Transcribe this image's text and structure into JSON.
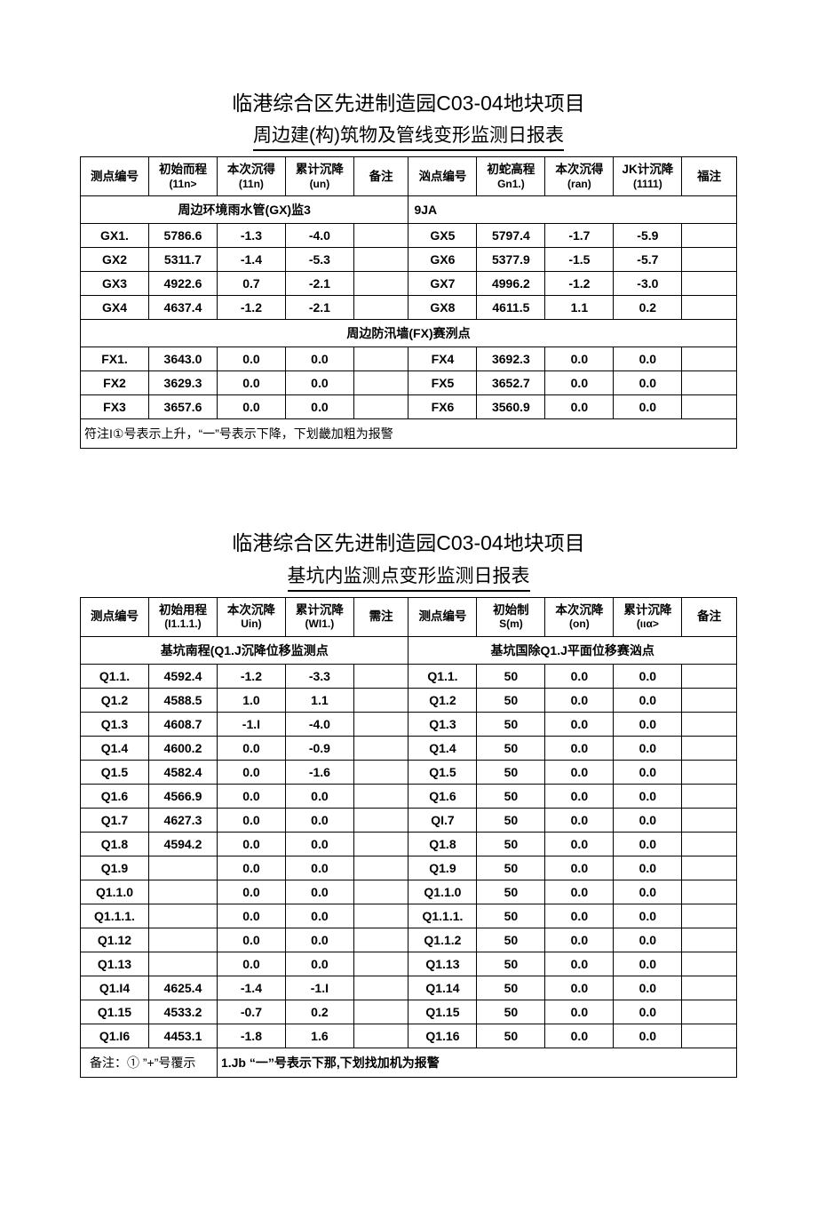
{
  "report1": {
    "title": "临港综合区先进制造园C03-04地块项目",
    "subtitle": "周边建(构)筑物及管线变形监测日报表",
    "headers": [
      {
        "main": "测点编号",
        "sub": ""
      },
      {
        "main": "初始而程",
        "sub": "(11n>"
      },
      {
        "main": "本次沉得",
        "sub": "(11n)"
      },
      {
        "main": "累计沉降",
        "sub": "(un)"
      },
      {
        "main": "备注",
        "sub": ""
      },
      {
        "main": "汹点编号",
        "sub": ""
      },
      {
        "main": "初蛇高程",
        "sub": "Gn1.)"
      },
      {
        "main": "本次沉得",
        "sub": "(ran)"
      },
      {
        "main": "JK计沉降",
        "sub": "(1111)"
      },
      {
        "main": "福注",
        "sub": ""
      }
    ],
    "section1_left": "周边环境雨水管(GX)监3",
    "section1_right": "9JA",
    "rows1": [
      [
        "GX1.",
        "5786.6",
        "-1.3",
        "-4.0",
        "",
        "GX5",
        "5797.4",
        "-1.7",
        "-5.9",
        ""
      ],
      [
        "GX2",
        "5311.7",
        "-1.4",
        "-5.3",
        "",
        "GX6",
        "5377.9",
        "-1.5",
        "-5.7",
        ""
      ],
      [
        "GX3",
        "4922.6",
        "0.7",
        "-2.1",
        "",
        "GX7",
        "4996.2",
        "-1.2",
        "-3.0",
        ""
      ],
      [
        "GX4",
        "4637.4",
        "-1.2",
        "-2.1",
        "",
        "GX8",
        "4611.5",
        "1.1",
        "0.2",
        ""
      ]
    ],
    "section2_full": "周边防汛墙(FX)赛洌点",
    "rows2": [
      [
        "FX1.",
        "3643.0",
        "0.0",
        "0.0",
        "",
        "FX4",
        "3692.3",
        "0.0",
        "0.0",
        ""
      ],
      [
        "FX2",
        "3629.3",
        "0.0",
        "0.0",
        "",
        "FX5",
        "3652.7",
        "0.0",
        "0.0",
        ""
      ],
      [
        "FX3",
        "3657.6",
        "0.0",
        "0.0",
        "",
        "FX6",
        "3560.9",
        "0.0",
        "0.0",
        ""
      ]
    ],
    "footnote": "符注I①号表示上升，“一”号表示下降，下划畿加粗为报警"
  },
  "report2": {
    "title": "临港综合区先进制造园C03-04地块项目",
    "subtitle": "基坑内监测点变形监测日报表",
    "headers": [
      {
        "main": "测点编号",
        "sub": ""
      },
      {
        "main": "初始用程",
        "sub": "(I1.1.1.)"
      },
      {
        "main": "本次沉降",
        "sub": "Uin)"
      },
      {
        "main": "累计沉降",
        "sub": "(WI1.)"
      },
      {
        "main": "需注",
        "sub": ""
      },
      {
        "main": "测点编号",
        "sub": ""
      },
      {
        "main": "初始制",
        "sub": "S(m)"
      },
      {
        "main": "本次沉降",
        "sub": "(on)"
      },
      {
        "main": "累计沉降",
        "sub": "(ιια>"
      },
      {
        "main": "备注",
        "sub": ""
      }
    ],
    "section1_left": "基坑南程(Q1.J沉降位移监测点",
    "section1_right": "基坑国除Q1.J平面位移赛汹点",
    "rows": [
      [
        "Q1.1.",
        "4592.4",
        "-1.2",
        "-3.3",
        "",
        "Q1.1.",
        "50",
        "0.0",
        "0.0",
        ""
      ],
      [
        "Q1.2",
        "4588.5",
        "1.0",
        "1.1",
        "",
        "Q1.2",
        "50",
        "0.0",
        "0.0",
        ""
      ],
      [
        "Q1.3",
        "4608.7",
        "-1.I",
        "-4.0",
        "",
        "Q1.3",
        "50",
        "0.0",
        "0.0",
        ""
      ],
      [
        "Q1.4",
        "4600.2",
        "0.0",
        "-0.9",
        "",
        "Q1.4",
        "50",
        "0.0",
        "0.0",
        ""
      ],
      [
        "Q1.5",
        "4582.4",
        "0.0",
        "-1.6",
        "",
        "Q1.5",
        "50",
        "0.0",
        "0.0",
        ""
      ],
      [
        "Q1.6",
        "4566.9",
        "0.0",
        "0.0",
        "",
        "Q1.6",
        "50",
        "0.0",
        "0.0",
        ""
      ],
      [
        "Q1.7",
        "4627.3",
        "0.0",
        "0.0",
        "",
        "QI.7",
        "50",
        "0.0",
        "0.0",
        ""
      ],
      [
        "Q1.8",
        "4594.2",
        "0.0",
        "0.0",
        "",
        "Q1.8",
        "50",
        "0.0",
        "0.0",
        ""
      ],
      [
        "Q1.9",
        "",
        "0.0",
        "0.0",
        "",
        "Q1.9",
        "50",
        "0.0",
        "0.0",
        ""
      ],
      [
        "Q1.1.0",
        "",
        "0.0",
        "0.0",
        "",
        "Q1.1.0",
        "50",
        "0.0",
        "0.0",
        ""
      ],
      [
        "Q1.1.1.",
        "",
        "0.0",
        "0.0",
        "",
        "Q1.1.1.",
        "50",
        "0.0",
        "0.0",
        ""
      ],
      [
        "Q1.12",
        "",
        "0.0",
        "0.0",
        "",
        "Q1.1.2",
        "50",
        "0.0",
        "0.0",
        ""
      ],
      [
        "Q1.13",
        "",
        "0.0",
        "0.0",
        "",
        "Q1.13",
        "50",
        "0.0",
        "0.0",
        ""
      ],
      [
        "Q1.I4",
        "4625.4",
        "-1.4",
        "-1.I",
        "",
        "Q1.14",
        "50",
        "0.0",
        "0.0",
        ""
      ],
      [
        "Q1.15",
        "4533.2",
        "-0.7",
        "0.2",
        "",
        "Q1.15",
        "50",
        "0.0",
        "0.0",
        ""
      ],
      [
        "Q1.I6",
        "4453.1",
        "-1.8",
        "1.6",
        "",
        "Q1.16",
        "50",
        "0.0",
        "0.0",
        ""
      ]
    ],
    "footnote_label": "备注：① ”+”号覆示",
    "footnote_text": "1.Jb “一”号表示下那,下划找加机为报警"
  },
  "layout": {
    "colwidths": [
      "10%",
      "10%",
      "10%",
      "10%",
      "8%",
      "10%",
      "10%",
      "10%",
      "10%",
      "8%"
    ]
  }
}
